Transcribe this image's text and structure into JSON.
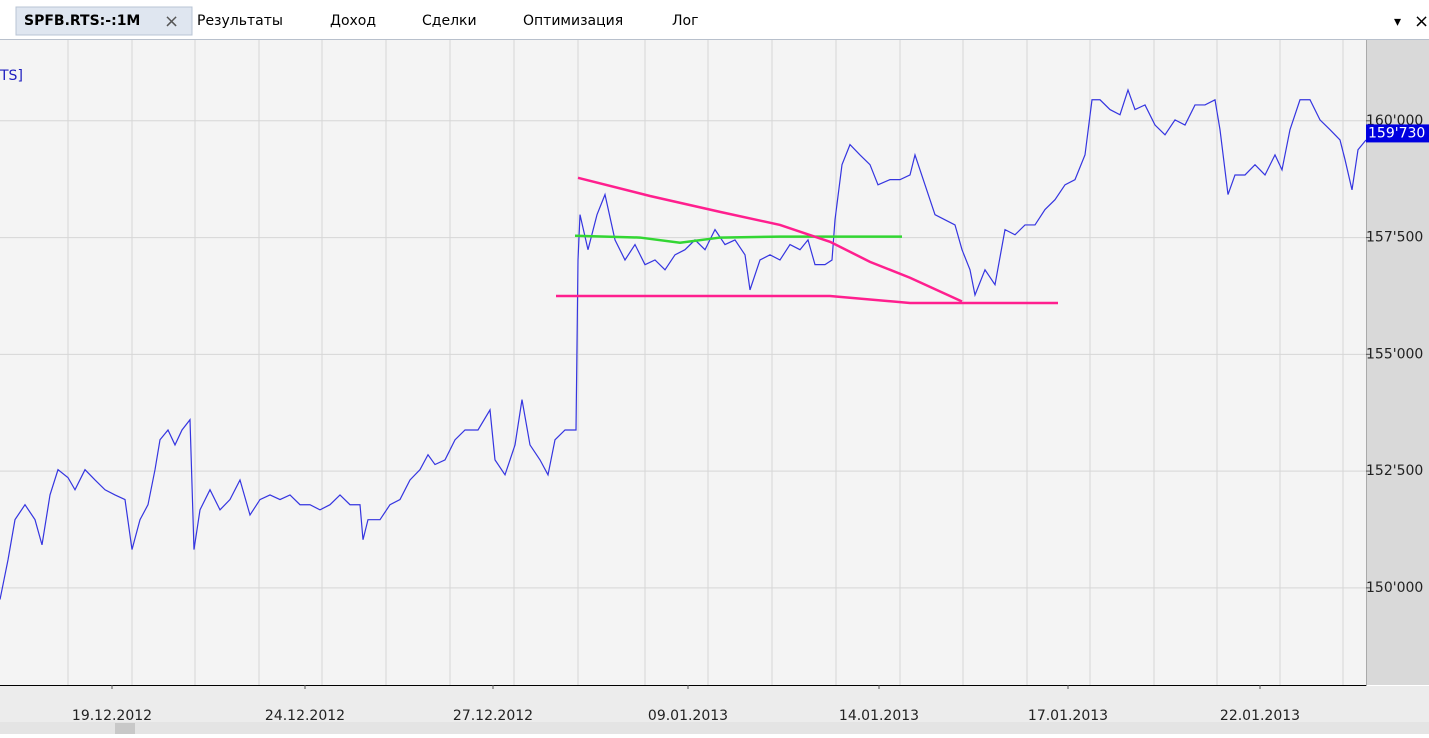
{
  "tabs": [
    "SPFB.RTS:-:1M",
    "Результаты",
    "Доход",
    "Сделки",
    "Оптимизация",
    "Лог"
  ],
  "chart_data": {
    "type": "line",
    "title": "TS]",
    "x": [
      0,
      8,
      15,
      25,
      35,
      42,
      50,
      58,
      68,
      75,
      85,
      95,
      105,
      115,
      125,
      132,
      140,
      148,
      155,
      160,
      168,
      175,
      182,
      190,
      194,
      200,
      210,
      220,
      230,
      240,
      250,
      260,
      270,
      280,
      290,
      300,
      310,
      320,
      330,
      340,
      350,
      360,
      363,
      368,
      380,
      390,
      400,
      410,
      420,
      428,
      435,
      445,
      455,
      465,
      478,
      490,
      495,
      505,
      515,
      522,
      530,
      540,
      548,
      555,
      565,
      576,
      578,
      580,
      588,
      597,
      605,
      615,
      625,
      635,
      645,
      655,
      665,
      675,
      685,
      695,
      705,
      715,
      725,
      735,
      745,
      750,
      760,
      770,
      780,
      790,
      800,
      808,
      815,
      825,
      832,
      835,
      842,
      850,
      860,
      870,
      878,
      890,
      900,
      910,
      915,
      925,
      935,
      945,
      955,
      962,
      970,
      975,
      985,
      995,
      1005,
      1015,
      1025,
      1035,
      1045,
      1055,
      1065,
      1075,
      1085,
      1092,
      1100,
      1110,
      1120,
      1128,
      1135,
      1145,
      1155,
      1165,
      1175,
      1185,
      1195,
      1205,
      1215,
      1220,
      1228,
      1235,
      1245,
      1255,
      1265,
      1275,
      1282,
      1290,
      1300,
      1310,
      1320,
      1330,
      1340,
      1345,
      1352,
      1358,
      1366
    ],
    "series": [
      {
        "color": "#3535e0",
        "values": [
          149750,
          150600,
          151460,
          151780,
          151460,
          150920,
          151990,
          152530,
          152360,
          152100,
          152530,
          152310,
          152100,
          151990,
          151890,
          150820,
          151460,
          151780,
          152530,
          153170,
          153380,
          153060,
          153380,
          153600,
          150820,
          151670,
          152100,
          151670,
          151890,
          152310,
          151560,
          151890,
          151990,
          151890,
          151990,
          151780,
          151780,
          151670,
          151780,
          151990,
          151780,
          151780,
          151030,
          151460,
          151460,
          151780,
          151890,
          152310,
          152530,
          152850,
          152640,
          152740,
          153170,
          153380,
          153380,
          153810,
          152740,
          152420,
          153060,
          154030,
          153060,
          152740,
          152420,
          153170,
          153380,
          153380,
          157020,
          157990,
          157240,
          157990,
          158420,
          157450,
          157020,
          157350,
          156920,
          157020,
          156810,
          157130,
          157240,
          157450,
          157240,
          157670,
          157350,
          157450,
          157130,
          156380,
          157020,
          157130,
          157020,
          157350,
          157240,
          157450,
          156920,
          156920,
          157020,
          157880,
          159060,
          159490,
          159270,
          159060,
          158630,
          158740,
          158740,
          158840,
          159270,
          158630,
          157990,
          157880,
          157770,
          157240,
          156810,
          156270,
          156810,
          156490,
          157670,
          157560,
          157770,
          157770,
          158100,
          158310,
          158630,
          158740,
          159270,
          160450,
          160450,
          160240,
          160130,
          160660,
          160240,
          160340,
          159910,
          159700,
          160020,
          159910,
          160340,
          160340,
          160450,
          159810,
          158420,
          158840,
          158840,
          159060,
          158840,
          159270,
          158950,
          159810,
          160450,
          160450,
          160020,
          159810,
          159590,
          159170,
          158520,
          159380,
          159590
        ]
      },
      {
        "color": "#33d633",
        "x": [
          575,
          640,
          680,
          720,
          780,
          902
        ],
        "values": [
          157540,
          157500,
          157390,
          157500,
          157520,
          157520
        ]
      },
      {
        "color": "#ff1f8e",
        "x": [
          578,
          650,
          720,
          780,
          830,
          870,
          910,
          962
        ],
        "values": [
          158780,
          158390,
          158050,
          157770,
          157410,
          156980,
          156640,
          156130
        ]
      },
      {
        "color": "#ff1f8e",
        "x": [
          556,
          830,
          910,
          1058
        ],
        "values": [
          156250,
          156250,
          156100,
          156100
        ]
      }
    ],
    "xlim": [
      0,
      1366
    ],
    "ylim": [
      147920,
      161730
    ],
    "yticks": [
      {
        "value": 150000,
        "label": "150'000"
      },
      {
        "value": 152500,
        "label": "152'500"
      },
      {
        "value": 155000,
        "label": "155'000"
      },
      {
        "value": 157500,
        "label": "157'500"
      },
      {
        "value": 160000,
        "label": "160'000"
      }
    ],
    "xticks": [
      {
        "value": 112,
        "label": "19.12.2012"
      },
      {
        "value": 305,
        "label": "24.12.2012"
      },
      {
        "value": 493,
        "label": "27.12.2012"
      },
      {
        "value": 688,
        "label": "09.01.2013"
      },
      {
        "value": 879,
        "label": "14.01.2013"
      },
      {
        "value": 1068,
        "label": "17.01.2013"
      },
      {
        "value": 1260,
        "label": "22.01.2013"
      }
    ],
    "xgrid": [
      68,
      132,
      195,
      259,
      322,
      386,
      450,
      514,
      578,
      645,
      708,
      772,
      836,
      900,
      963,
      1027,
      1090,
      1154,
      1217,
      1280,
      1343
    ],
    "last_price": {
      "value": 159730,
      "label": "159'730"
    },
    "grid": true
  }
}
